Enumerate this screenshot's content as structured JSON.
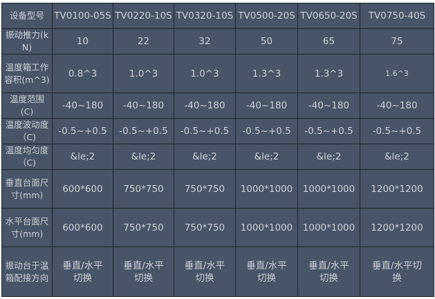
{
  "header": {
    "label": "设备型号",
    "models": [
      "TV0100-05S",
      "TV0220-10S",
      "TV0320-10S",
      "TV0500-20S",
      "TV0650-20S",
      "TV0750-40S"
    ]
  },
  "rows": [
    {
      "label": "振动推力(kN)",
      "values": [
        "10",
        "22",
        "32",
        "50",
        "65",
        "75"
      ]
    },
    {
      "label": "温度箱工作容积(m^3)",
      "values": [
        "0.8^3",
        "1.0^3",
        "1.0^3",
        "1.3^3",
        "1.3^3",
        "1.6^3"
      ]
    },
    {
      "label": "温度范围(C)",
      "values": [
        "-40~180",
        "-40~180",
        "-40~180",
        "-40~180",
        "-40~180",
        "-40~180"
      ]
    },
    {
      "label": "温度波动度（C)",
      "values": [
        "-0.5~+0.5",
        "-0.5~+0.5",
        "-0.5~+0.5",
        "-0.5~+0.5",
        "-0.5~+0.5",
        "-0.5~+0.5"
      ]
    },
    {
      "label": "温度均匀度（C)",
      "values": [
        "&le;2",
        "&le;2",
        "&le;2",
        "&le;2",
        "&le;2",
        "&le;2"
      ]
    },
    {
      "label": "垂直台面尺寸(mm)",
      "values": [
        "600*600",
        "750*750",
        "750*750",
        "1000*1000",
        "1000*1000",
        "1200*1200"
      ]
    },
    {
      "label": "水平台面尺寸(mm)",
      "values": [
        "600*600",
        "750*750",
        "750*750",
        "1000*1000",
        "1000*1000",
        "1200*1200"
      ]
    },
    {
      "label": "振动台于温箱配接方向",
      "values": [
        "垂直/水平切换",
        "垂直/水平切换",
        "垂直/水平切换",
        "垂直/水平切换",
        "垂直/水平切换",
        "垂直/水平切换"
      ]
    }
  ]
}
